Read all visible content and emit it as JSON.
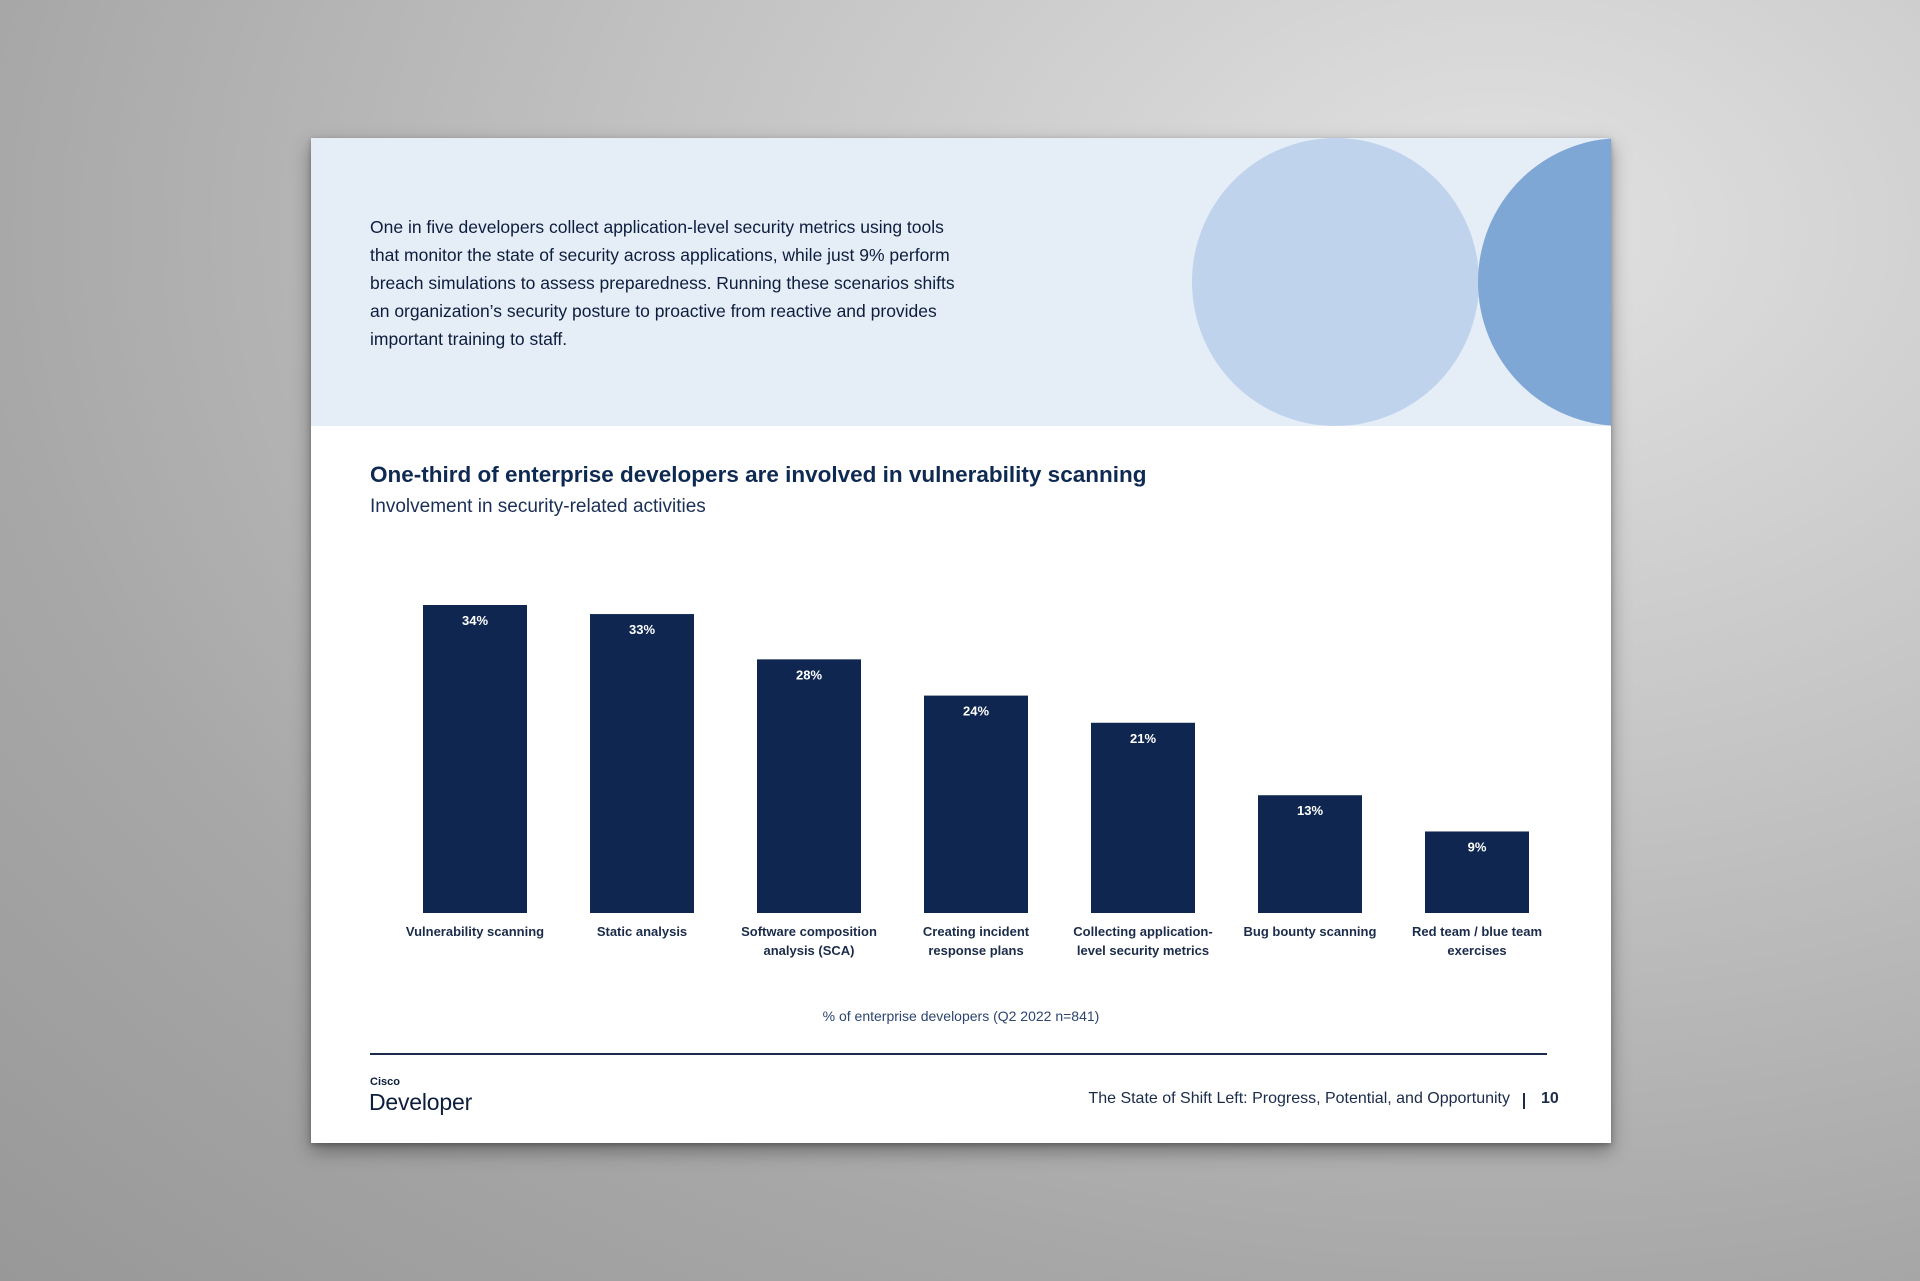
{
  "intro_text": "One in five developers collect application-level security metrics using tools that monitor the state of security across applications, while just 9% perform breach simulations to assess preparedness. Running these scenarios shifts an organization’s security posture to proactive from reactive and provides important training to staff.",
  "chart_data": {
    "type": "bar",
    "title": "One-third of enterprise developers are involved in vulnerability scanning",
    "subtitle": "Involvement in security-related activities",
    "categories": [
      [
        "Vulnerability scanning"
      ],
      [
        "Static analysis"
      ],
      [
        "Software composition",
        "analysis (SCA)"
      ],
      [
        "Creating incident",
        "response plans"
      ],
      [
        "Collecting application-",
        "level security metrics"
      ],
      [
        "Bug bounty scanning"
      ],
      [
        "Red team / blue team",
        "exercises"
      ]
    ],
    "values": [
      34,
      33,
      28,
      24,
      21,
      13,
      9
    ],
    "value_labels": [
      "34%",
      "33%",
      "28%",
      "24%",
      "21%",
      "13%",
      "9%"
    ],
    "ylim": [
      0,
      34
    ],
    "grid": false,
    "legend": "none",
    "bar_color": "#0f2750",
    "note": "% of enterprise developers (Q2 2022 n=841)"
  },
  "footer": {
    "brand_small": "Cisco",
    "brand_big": "Developer",
    "doc_title": "The State of Shift Left: Progress, Potential, and Opportunity",
    "page_number": "10"
  },
  "colors": {
    "banner": "#e5edf7",
    "circle_light": "#bfd3ec",
    "circle_mid": "#7ea7d6",
    "text_dark": "#0d1d3d"
  }
}
